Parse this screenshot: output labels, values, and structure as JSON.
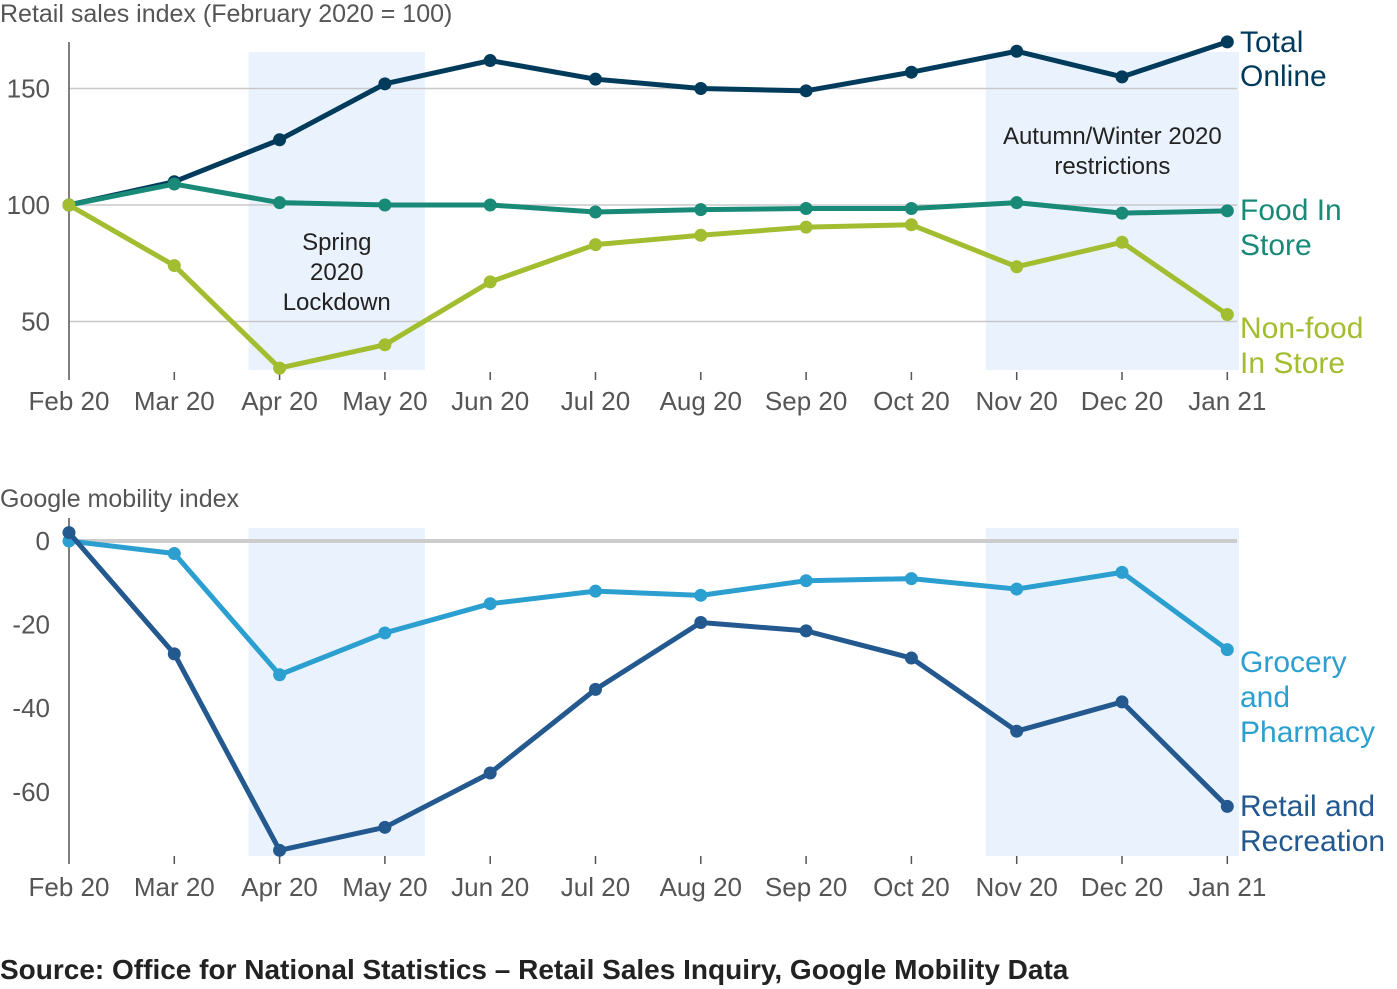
{
  "source": "Source: Office for National Statistics – Retail Sales Inquiry, Google Mobility Data",
  "colors": {
    "shade": "#eaf3fd",
    "grid": "#c8c8c8",
    "zero_line": "#cccccc",
    "axis": "#555555",
    "total_online": "#003b5c",
    "food_in_store": "#1a8a78",
    "non_food_in_store": "#a2bd30",
    "grocery_pharmacy": "#2b9fd0",
    "retail_recreation": "#23598f"
  },
  "chart_data": [
    {
      "type": "line",
      "ylabel": "Retail sales index (February 2020 = 100)",
      "categories": [
        "Feb 20",
        "Mar 20",
        "Apr 20",
        "May 20",
        "Jun 20",
        "Jul 20",
        "Aug 20",
        "Sep 20",
        "Oct 20",
        "Nov 20",
        "Dec 20",
        "Jan 21"
      ],
      "ylim": [
        30,
        170
      ],
      "yticks": [
        50,
        100,
        150
      ],
      "grid": true,
      "shaded_periods": [
        {
          "label_lines": [
            "Spring",
            "2020",
            "Lockdown"
          ],
          "from": "Apr 20",
          "to": "May 20"
        },
        {
          "label_lines": [
            "Autumn/Winter 2020",
            "restrictions"
          ],
          "from": "Nov 20",
          "to": "Jan 21"
        }
      ],
      "series": [
        {
          "name_lines": [
            "Total",
            "Online"
          ],
          "color_key": "total_online",
          "values": [
            100,
            110,
            128,
            152,
            162,
            154,
            150,
            149,
            157,
            166,
            155,
            170
          ]
        },
        {
          "name_lines": [
            "Food In",
            "Store"
          ],
          "color_key": "food_in_store",
          "values": [
            100,
            109,
            101,
            100,
            100,
            97,
            98,
            98.5,
            98.5,
            101,
            96.5,
            97.5
          ]
        },
        {
          "name_lines": [
            "Non-food",
            "In Store"
          ],
          "color_key": "non_food_in_store",
          "values": [
            100,
            74,
            30,
            40,
            67,
            83,
            87,
            90.5,
            91.5,
            73.5,
            84,
            53
          ]
        }
      ]
    },
    {
      "type": "line",
      "ylabel": "Google mobility index",
      "categories": [
        "Feb 20",
        "Mar 20",
        "Apr 20",
        "May 20",
        "Jun 20",
        "Jul 20",
        "Aug 20",
        "Sep 20",
        "Oct 20",
        "Nov 20",
        "Dec 20",
        "Jan 21"
      ],
      "ylim": [
        -75,
        3
      ],
      "yticks": [
        0,
        -20,
        -40,
        -60
      ],
      "zero_line": true,
      "shaded_periods": [
        {
          "from": "Apr 20",
          "to": "May 20"
        },
        {
          "from": "Nov 20",
          "to": "Jan 21"
        }
      ],
      "series": [
        {
          "name_lines": [
            "Grocery",
            "and",
            "Pharmacy"
          ],
          "color_key": "grocery_pharmacy",
          "values": [
            0,
            -3,
            -32,
            -22,
            -15,
            -12,
            -13,
            -9.5,
            -9,
            -11.5,
            -7.5,
            -26
          ]
        },
        {
          "name_lines": [
            "Retail and",
            "Recreation"
          ],
          "color_key": "retail_recreation",
          "values": [
            2,
            -27,
            -74,
            -68.5,
            -55.5,
            -35.5,
            -19.5,
            -21.5,
            -28,
            -45.5,
            -38.5,
            -63.5
          ]
        }
      ]
    }
  ]
}
